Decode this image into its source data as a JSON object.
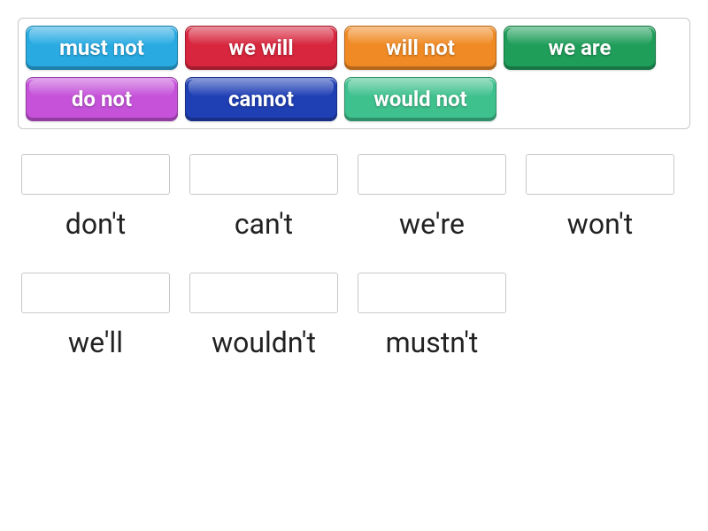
{
  "bank_border_color": "#c8c8c8",
  "dropzone_border_color": "#c8c8c8",
  "tile_font_color": "#ffffff",
  "tile_font_size": 24,
  "tile_font_weight": 700,
  "label_font_color": "#222222",
  "label_font_size": 32,
  "tiles": [
    {
      "label": "must not",
      "color": "#29abe2"
    },
    {
      "label": "we will",
      "color": "#d7263d"
    },
    {
      "label": "will not",
      "color": "#f08a24"
    },
    {
      "label": "we are",
      "color": "#1f9e5a"
    },
    {
      "label": "do not",
      "color": "#c552d9"
    },
    {
      "label": "cannot",
      "color": "#1f3fb5"
    },
    {
      "label": "would not",
      "color": "#3fc18d"
    }
  ],
  "targets": [
    {
      "label": "don't"
    },
    {
      "label": "can't"
    },
    {
      "label": "we're"
    },
    {
      "label": "won't"
    },
    {
      "label": "we'll"
    },
    {
      "label": "wouldn't"
    },
    {
      "label": "mustn't"
    }
  ]
}
